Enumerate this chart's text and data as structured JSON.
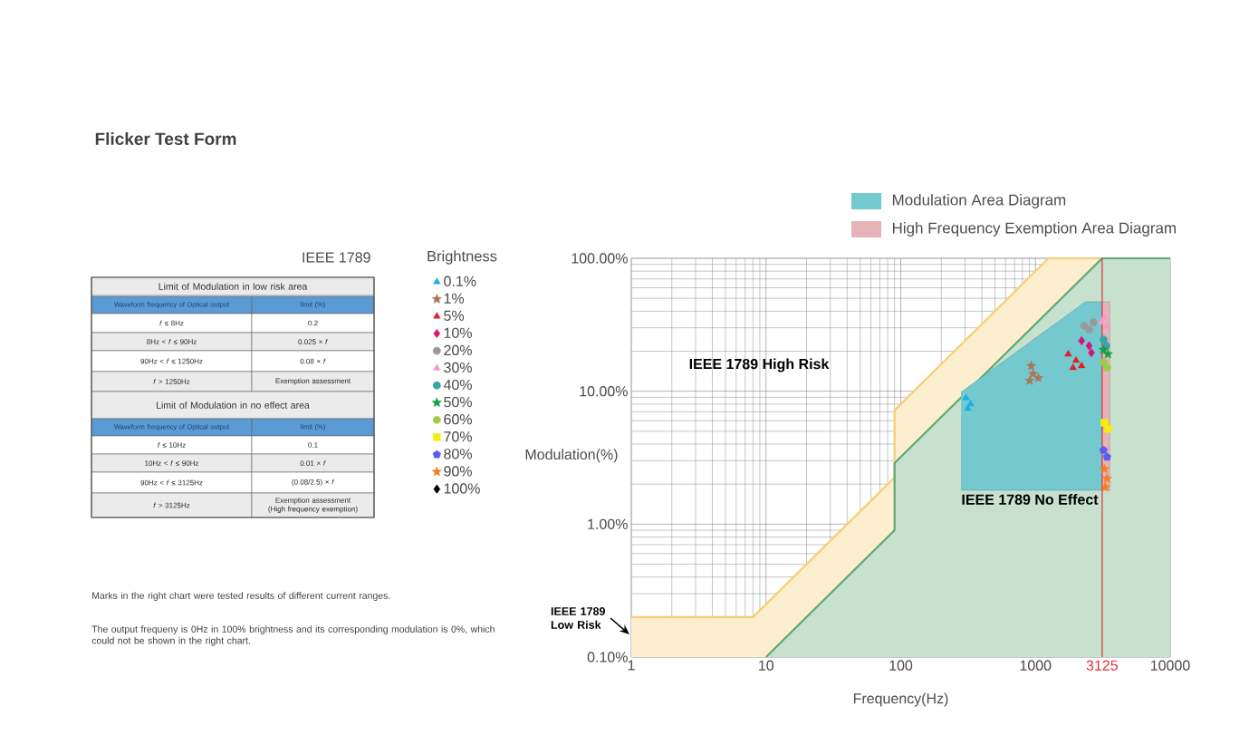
{
  "chart_data": [
    {
      "type": "other",
      "title": "Flicker Test Form",
      "subtitle": "IEEE 1789",
      "annotations": [
        "Limit of Modulation in low risk area",
        "Waveform frequency of Optical output",
        "limit (%)",
        "*f* ≤ 8Hz",
        "0.2",
        "8Hz < *f* ≤ 90Hz",
        "0.025 × *f*",
        "90Hz < *f* ≤ 1250Hz",
        "0.08 × *f*",
        "*f* > 1250Hz",
        "Exemption assessment",
        "Limit of Modulation in no effect area",
        "Waveform frequency of Optical output",
        "limit (%)",
        "*f* ≤ 10Hz",
        "0.1",
        "10Hz < *f* ≤ 90Hz",
        "0.01 × *f*",
        "90Hz < *f* ≤ 3125Hz",
        "(0.08/2.5) × *f*",
        "*f* > 3125Hz",
        "Exemption assessment (High frequency exemption)",
        "Marks in the right chart were tested results of different current ranges.",
        "The output frequeny is 0Hz in 100% brightness and its corresponding modulation is 0%, which could not be shown in the right chart."
      ]
    },
    {
      "type": "scatter",
      "xlabel": "Frequency(Hz)",
      "ylabel": "Modulation(%)",
      "legend_title": "Brightness",
      "log": "xy",
      "xlim": [
        1,
        10000
      ],
      "ylim": [
        0.1,
        100
      ],
      "xticks": [
        1,
        10,
        100,
        1000,
        3125,
        10000
      ],
      "yticks": [
        {
          "value": 0.1,
          "label": "0.10%"
        },
        {
          "value": 1,
          "label": "1.00%"
        },
        {
          "value": 10,
          "label": "10.00%"
        },
        {
          "value": 100,
          "label": "100.00%"
        }
      ],
      "grid": true,
      "legend": "left",
      "ref_lines": [
        {
          "axis": "x",
          "value": 3125,
          "color": "#e0303a"
        }
      ],
      "annotations": [
        "IEEE 1789 High Risk",
        "IEEE 1789 No Effect",
        "IEEE 1789 Low Risk"
      ],
      "series": [
        {
          "type": "area",
          "color": "#f6cf74",
          "line_style": "solid",
          "x": [
            1,
            8,
            90,
            90,
            1250,
            10000
          ],
          "values": [
            0.2,
            0.2,
            2.25,
            7.2,
            100,
            100
          ]
        },
        {
          "type": "area",
          "color": "#5fa873",
          "line_style": "solid",
          "x": [
            10,
            90,
            90,
            3125,
            10000
          ],
          "values": [
            0.1,
            0.9,
            2.88,
            100,
            100
          ]
        },
        {
          "type": "area",
          "name": "Modulation Area Diagram",
          "color": "#74c9cf",
          "x": [
            280,
            2350,
            3125,
            3125,
            280
          ],
          "values": [
            9.8,
            47,
            47,
            1.8,
            1.8
          ]
        },
        {
          "type": "area",
          "name": "High Frequency Exemption Area Diagram",
          "color": "#e6b3ba",
          "x": [
            3125,
            3550,
            3550,
            3125
          ],
          "values": [
            47,
            47,
            1.8,
            1.8
          ]
        },
        {
          "name": "0.1%",
          "color": "#1ab0e8",
          "marker": "triangle",
          "x": [
            305,
            330,
            315
          ],
          "values": [
            8.9,
            8.0,
            7.4
          ]
        },
        {
          "name": "1%",
          "color": "#a87858",
          "marker": "star",
          "x": [
            930,
            905,
            1050,
            960
          ],
          "values": [
            15.5,
            12,
            12.6,
            13.5
          ]
        },
        {
          "name": "5%",
          "color": "#e0202a",
          "marker": "triangle",
          "x": [
            1750,
            2000,
            2200,
            1900
          ],
          "values": [
            19,
            17,
            15.5,
            15
          ]
        },
        {
          "name": "10%",
          "color": "#d6147a",
          "marker": "diamond",
          "x": [
            2200,
            2500,
            2600
          ],
          "values": [
            24,
            22,
            19.5
          ]
        },
        {
          "name": "20%",
          "color": "#9a9a9a",
          "marker": "circle",
          "x": [
            2300,
            2700,
            2500
          ],
          "values": [
            31,
            33,
            29
          ]
        },
        {
          "name": "30%",
          "color": "#f59ac4",
          "marker": "triangle",
          "x": [
            3250,
            3400,
            3100
          ],
          "values": [
            36,
            31,
            33
          ]
        },
        {
          "name": "40%",
          "color": "#3aa3a8",
          "marker": "circle",
          "x": [
            3200,
            3350
          ],
          "values": [
            24.5,
            22
          ]
        },
        {
          "name": "50%",
          "color": "#16a045",
          "marker": "star",
          "x": [
            3200,
            3450
          ],
          "values": [
            20.5,
            19
          ]
        },
        {
          "name": "60%",
          "color": "#9ccb48",
          "marker": "circle",
          "x": [
            3200,
            3400
          ],
          "values": [
            16.5,
            15
          ]
        },
        {
          "name": "70%",
          "color": "#f5ee0a",
          "marker": "square",
          "x": [
            3250,
            3450
          ],
          "values": [
            5.8,
            5.2
          ]
        },
        {
          "name": "80%",
          "color": "#5b5bf0",
          "x": [
            3200,
            3400
          ],
          "values": [
            3.6,
            3.2
          ]
        },
        {
          "name": "90%",
          "color": "#f57f25",
          "marker": "star",
          "x": [
            3250,
            3400,
            3300
          ],
          "values": [
            2.6,
            2.2,
            1.9
          ]
        },
        {
          "name": "100%",
          "color": "#000000",
          "marker": "diamond"
        }
      ]
    }
  ]
}
